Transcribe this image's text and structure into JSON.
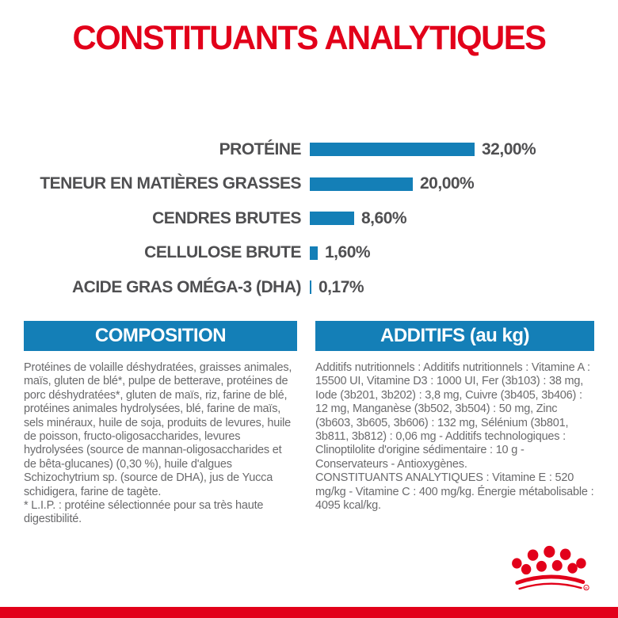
{
  "title": "CONSTITUANTS ANALYTIQUES",
  "colors": {
    "brand_red": "#e2001a",
    "bar_blue": "#147fb7",
    "chart_text_gray": "#4f4f51",
    "body_text_gray": "#6a6a6c"
  },
  "chart_data": {
    "type": "bar",
    "orientation": "horizontal",
    "title": "CONSTITUANTS ANALYTIQUES",
    "categories": [
      "PROTÉINE",
      "TENEUR EN MATIÈRES GRASSES",
      "CENDRES BRUTES",
      "CELLULOSE BRUTE",
      "ACIDE GRAS OMÉGA-3 (DHA)"
    ],
    "values": [
      32.0,
      20.0,
      8.6,
      1.6,
      0.17
    ],
    "value_labels": [
      "32,00%",
      "20,00%",
      "8,60%",
      "1,60%",
      "0,17%"
    ],
    "unit": "%",
    "xlim": [
      0,
      32
    ],
    "grid": false,
    "legend": false,
    "bar_color": "#147fb7"
  },
  "sections": {
    "composition": {
      "header": "COMPOSITION",
      "body": "Protéines de volaille déshydratées, graisses animales, maïs, gluten de blé*, pulpe de betterave, protéines de porc déshydratées*, gluten de maïs, riz, farine de blé, protéines animales hydrolysées, blé, farine de maïs, sels minéraux, huile de soja, produits de levures, huile de poisson, fructo-oligosaccharides, levures hydrolysées (source de mannan-oligosaccharides et de bêta-glucanes) (0,30 %), huile d'algues Schizochytrium sp. (source de DHA), jus de Yucca schidigera, farine de tagète.",
      "footnote": "* L.I.P. : protéine sélectionnée pour sa très haute digestibilité."
    },
    "additifs": {
      "header": "ADDITIFS (au kg)",
      "body": "Additifs nutritionnels : Additifs nutritionnels : Vitamine A : 15500 UI, Vitamine D3 : 1000 UI, Fer (3b103) : 38 mg, Iode (3b201, 3b202) : 3,8 mg, Cuivre (3b405, 3b406) : 12 mg, Manganèse (3b502, 3b504) : 50 mg, Zinc (3b603, 3b605, 3b606) : 132 mg, Sélénium (3b801, 3b811, 3b812) : 0,06 mg - Additifs technologiques : Clinoptilolite d'origine sédimentaire : 10 g - Conservateurs - Antioxygènes.",
      "analytical": "CONSTITUANTS ANALYTIQUES : Vitamine E : 520 mg/kg - Vitamine C : 400 mg/kg. Énergie métabolisable : 4095 kcal/kg."
    }
  },
  "footer": {
    "logo": "royal-canin-crown"
  }
}
